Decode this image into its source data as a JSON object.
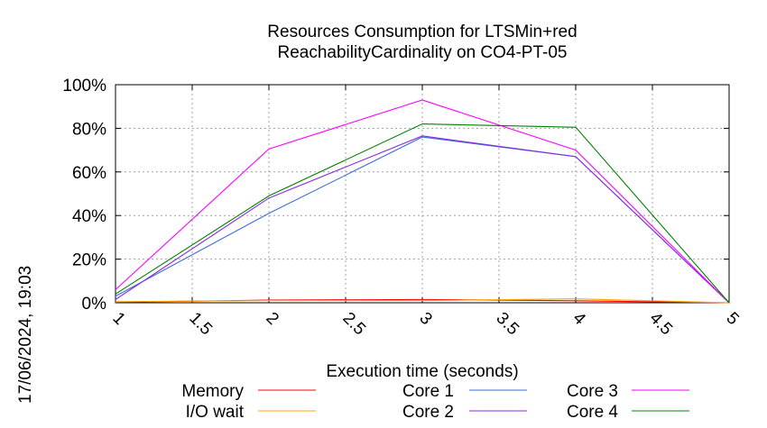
{
  "chart_data": {
    "type": "line",
    "title": [
      "Resources Consumption for LTSMin+red",
      "ReachabilityCardinality on CO4-PT-05"
    ],
    "xlabel": "Execution time (seconds)",
    "ylabel": "",
    "timestamp": "17/06/2024, 19:03",
    "xlim": [
      1,
      5
    ],
    "ylim": [
      0,
      100
    ],
    "x_ticks": [
      "1",
      "1.5",
      "2",
      "2.5",
      "3",
      "3.5",
      "4",
      "4.5",
      "5"
    ],
    "y_ticks": [
      "0%",
      "20%",
      "40%",
      "60%",
      "80%",
      "100%"
    ],
    "grid": true,
    "x": [
      1,
      2,
      3,
      4,
      5
    ],
    "series": [
      {
        "name": "Memory",
        "color": "#ff0000",
        "values": [
          0.3,
          1.2,
          1.5,
          0.9,
          0
        ]
      },
      {
        "name": "I/O wait",
        "color": "#ffa500",
        "values": [
          0.5,
          1.0,
          1.0,
          1.8,
          0
        ]
      },
      {
        "name": "Core 1",
        "color": "#4169e1",
        "values": [
          3,
          41,
          76,
          67,
          0
        ]
      },
      {
        "name": "Core 2",
        "color": "#8a2be2",
        "values": [
          1.5,
          48,
          76.5,
          67,
          0
        ]
      },
      {
        "name": "Core 3",
        "color": "#ff00ff",
        "values": [
          6,
          70.5,
          93,
          70,
          0
        ]
      },
      {
        "name": "Core 4",
        "color": "#008000",
        "values": [
          4,
          49,
          82,
          80.5,
          0
        ]
      }
    ],
    "legend_position": "bottom"
  }
}
